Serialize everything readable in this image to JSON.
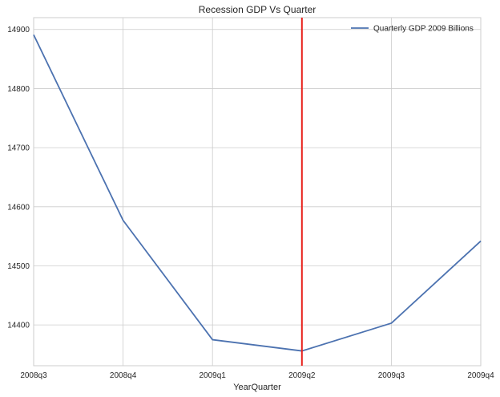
{
  "chart_data": {
    "type": "line",
    "title": "Recession GDP Vs Quarter",
    "xlabel": "YearQuarter",
    "ylabel": "",
    "categories": [
      "2008q3",
      "2008q4",
      "2009q1",
      "2009q2",
      "2009q3",
      "2009q4"
    ],
    "series": [
      {
        "name": "Quarterly GDP 2009 Billions",
        "color": "#4c72b0",
        "values": [
          14891,
          14577,
          14375,
          14356,
          14403,
          14542
        ]
      }
    ],
    "y_ticks": [
      14400,
      14500,
      14600,
      14700,
      14800,
      14900
    ],
    "ylim": [
      14331,
      14920
    ],
    "grid": true,
    "legend_position": "top-right",
    "vertical_marker": {
      "x": "2009q2",
      "color": "#e8201a"
    }
  }
}
